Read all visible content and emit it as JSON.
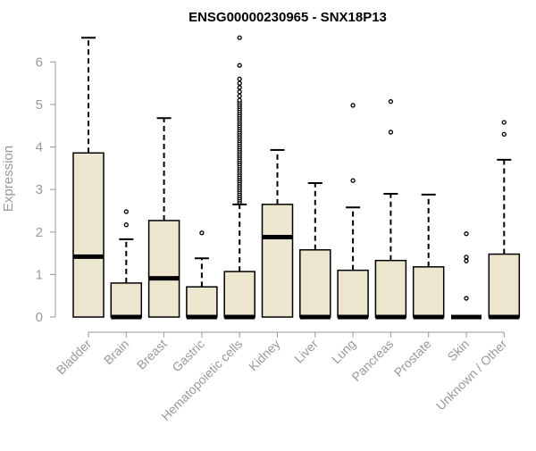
{
  "chart_data": {
    "type": "boxplot",
    "title": "ENSG00000230965 - SNX18P13",
    "xlabel": "",
    "ylabel": "Expression",
    "ylim": [
      0,
      6.6
    ],
    "yticks": [
      0,
      1,
      2,
      3,
      4,
      5,
      6
    ],
    "grid": false,
    "legend": "none",
    "colors": {
      "box_fill": "#ede6cf",
      "box_stroke": "#000000",
      "axis": "#999999",
      "tick_label": "#999999",
      "title": "#000000"
    },
    "categories": [
      "Bladder",
      "Brain",
      "Breast",
      "Gastric",
      "Hematopoietic cells",
      "Kidney",
      "Liver",
      "Lung",
      "Pancreas",
      "Prostate",
      "Skin",
      "Unknown / Other"
    ],
    "boxes": [
      {
        "category": "Bladder",
        "min": 0,
        "q1": 0,
        "median": 1.42,
        "q3": 3.86,
        "max": 6.57,
        "outliers": []
      },
      {
        "category": "Brain",
        "min": 0,
        "q1": 0,
        "median": 0,
        "q3": 0.8,
        "max": 1.83,
        "outliers": [
          2.17,
          2.48
        ]
      },
      {
        "category": "Breast",
        "min": 0,
        "q1": 0,
        "median": 0.91,
        "q3": 2.27,
        "max": 4.68,
        "outliers": []
      },
      {
        "category": "Gastric",
        "min": 0,
        "q1": 0,
        "median": 0,
        "q3": 0.71,
        "max": 1.38,
        "outliers": [
          1.98
        ]
      },
      {
        "category": "Hematopoietic cells",
        "min": 0,
        "q1": 0,
        "median": 0,
        "q3": 1.07,
        "max": 2.65,
        "outliers": [
          2.7,
          2.75,
          2.8,
          2.85,
          2.9,
          2.95,
          3.0,
          3.05,
          3.1,
          3.15,
          3.2,
          3.25,
          3.3,
          3.35,
          3.4,
          3.45,
          3.5,
          3.55,
          3.6,
          3.65,
          3.7,
          3.75,
          3.8,
          3.85,
          3.9,
          3.95,
          4.0,
          4.05,
          4.1,
          4.15,
          4.2,
          4.25,
          4.3,
          4.35,
          4.4,
          4.45,
          4.5,
          4.55,
          4.6,
          4.65,
          4.7,
          4.75,
          4.8,
          4.85,
          4.9,
          4.95,
          5.0,
          5.05,
          5.1,
          5.2,
          5.3,
          5.4,
          5.5,
          5.6,
          5.92,
          6.57
        ]
      },
      {
        "category": "Kidney",
        "min": 0,
        "q1": 0,
        "median": 1.88,
        "q3": 2.65,
        "max": 3.93,
        "outliers": []
      },
      {
        "category": "Liver",
        "min": 0,
        "q1": 0,
        "median": 0,
        "q3": 1.58,
        "max": 3.15,
        "outliers": []
      },
      {
        "category": "Lung",
        "min": 0,
        "q1": 0,
        "median": 0,
        "q3": 1.1,
        "max": 2.58,
        "outliers": [
          3.21,
          4.98
        ]
      },
      {
        "category": "Pancreas",
        "min": 0,
        "q1": 0,
        "median": 0,
        "q3": 1.33,
        "max": 2.9,
        "outliers": [
          4.35,
          5.07
        ]
      },
      {
        "category": "Prostate",
        "min": 0,
        "q1": 0,
        "median": 0,
        "q3": 1.18,
        "max": 2.88,
        "outliers": []
      },
      {
        "category": "Skin",
        "min": 0,
        "q1": 0,
        "median": 0,
        "q3": 0,
        "max": 0,
        "outliers": [
          0.44,
          1.32,
          1.41,
          1.96
        ]
      },
      {
        "category": "Unknown / Other",
        "min": 0,
        "q1": 0,
        "median": 0,
        "q3": 1.48,
        "max": 3.7,
        "outliers": [
          4.3,
          4.58
        ]
      }
    ]
  }
}
